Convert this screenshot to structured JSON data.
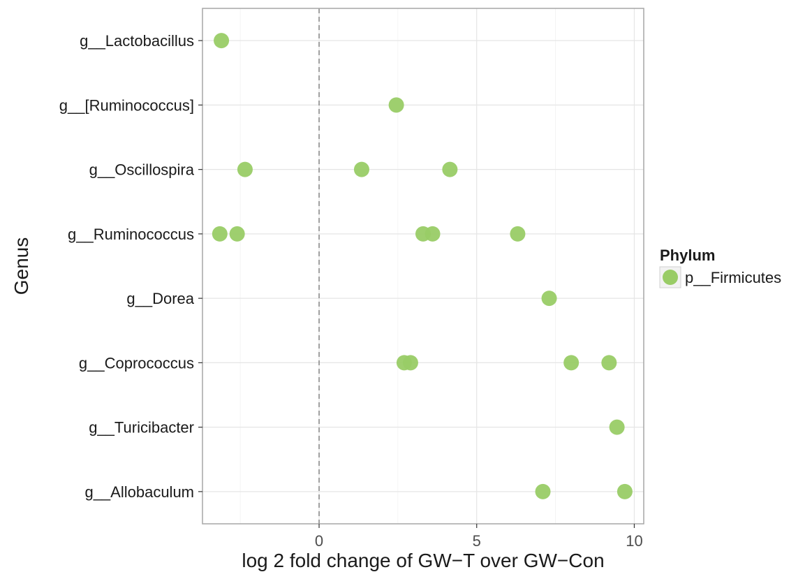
{
  "chart_data": {
    "type": "scatter",
    "xlabel": "log 2 fold change of GW−T over GW−Con",
    "ylabel": "Genus",
    "xlim": [
      -3.7,
      10.3
    ],
    "x_ticks": [
      0,
      5,
      10
    ],
    "x_tick_labels": [
      "0",
      "5",
      "10"
    ],
    "reference_line_x": 0,
    "grid": true,
    "point_color": "#99cc66",
    "legend": {
      "title": "Phylum",
      "placement": "right",
      "entries": [
        "p__Firmicutes"
      ]
    },
    "categories": [
      "g__Lactobacillus",
      "g__[Ruminococcus]",
      "g__Oscillospira",
      "g__Ruminococcus",
      "g__Dorea",
      "g__Coprococcus",
      "g__Turicibacter",
      "g__Allobaculum"
    ],
    "series": [
      {
        "name": "p__Firmicutes",
        "points": [
          {
            "genus": "g__Lactobacillus",
            "x": -3.1
          },
          {
            "genus": "g__[Ruminococcus]",
            "x": 2.45
          },
          {
            "genus": "g__Oscillospira",
            "x": -2.35
          },
          {
            "genus": "g__Oscillospira",
            "x": 1.35
          },
          {
            "genus": "g__Oscillospira",
            "x": 4.15
          },
          {
            "genus": "g__Ruminococcus",
            "x": -3.15
          },
          {
            "genus": "g__Ruminococcus",
            "x": -2.6
          },
          {
            "genus": "g__Ruminococcus",
            "x": 3.3
          },
          {
            "genus": "g__Ruminococcus",
            "x": 3.6
          },
          {
            "genus": "g__Ruminococcus",
            "x": 6.3
          },
          {
            "genus": "g__Dorea",
            "x": 7.3
          },
          {
            "genus": "g__Coprococcus",
            "x": 2.7
          },
          {
            "genus": "g__Coprococcus",
            "x": 2.9
          },
          {
            "genus": "g__Coprococcus",
            "x": 8.0
          },
          {
            "genus": "g__Coprococcus",
            "x": 9.2
          },
          {
            "genus": "g__Turicibacter",
            "x": 9.45
          },
          {
            "genus": "g__Allobaculum",
            "x": 7.1
          },
          {
            "genus": "g__Allobaculum",
            "x": 9.7
          }
        ]
      }
    ]
  }
}
